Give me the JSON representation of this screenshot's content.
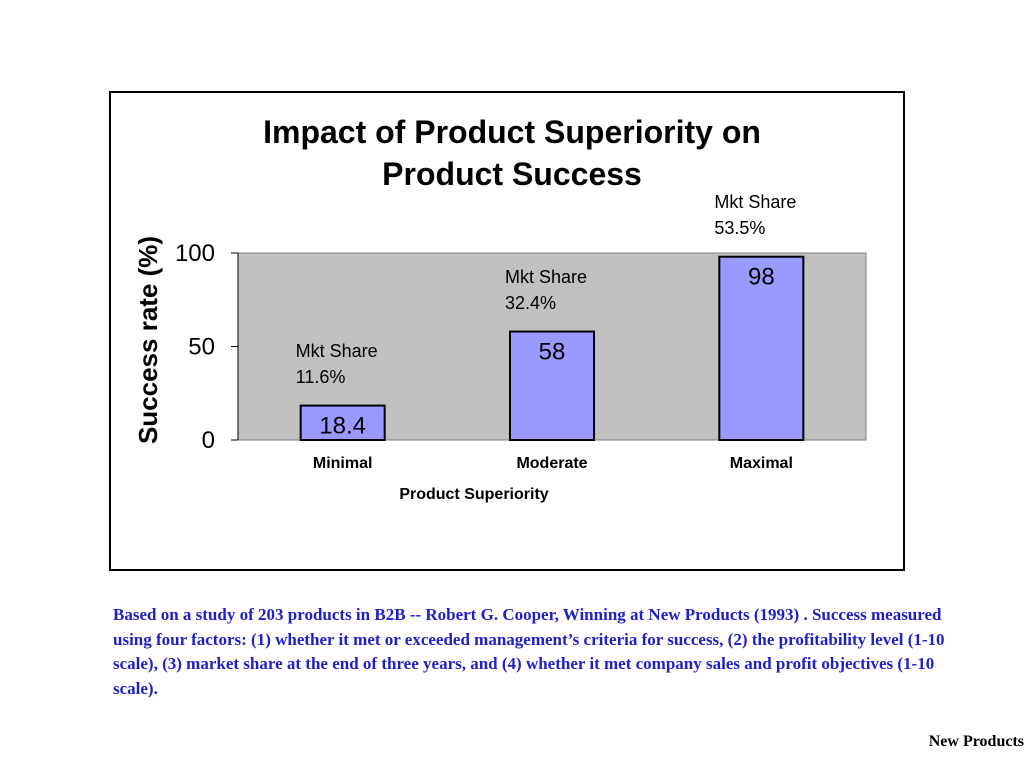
{
  "chart_data": {
    "type": "bar",
    "title_lines": [
      "Impact of Product Superiority on",
      "Product Success"
    ],
    "xlabel": "Product Superiority",
    "ylabel": "Success rate (%)",
    "categories": [
      "Minimal",
      "Moderate",
      "Maximal"
    ],
    "values": [
      18.4,
      58,
      98
    ],
    "data_labels": [
      "18.4",
      "58",
      "98"
    ],
    "annotations": [
      {
        "line1": "Mkt Share",
        "line2": "11.6%"
      },
      {
        "line1": "Mkt Share",
        "line2": "32.4%"
      },
      {
        "line1": "Mkt Share",
        "line2": "53.5%"
      }
    ],
    "ylim": [
      0,
      100
    ],
    "yticks": [
      0,
      50,
      100
    ],
    "grid": false,
    "legend": "none",
    "colors": {
      "plot_background": "#c0c0c0",
      "bar_fill": "#9999ff",
      "bar_stroke": "#000000"
    }
  },
  "caption": "Based on a study of 203 products in B2B -- Robert G. Cooper, Winning at New Products (1993) . Success measured using four factors: (1) whether it met or exceeded management’s criteria for success, (2) the profitability level (1-10 scale), (3) market share at the end of three years, and (4) whether it met company sales and profit objectives (1-10 scale).",
  "footer": "New Products"
}
